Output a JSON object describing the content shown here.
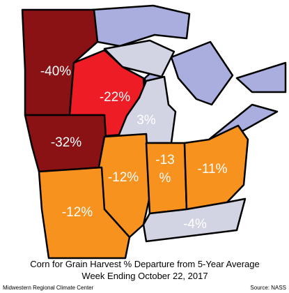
{
  "title": "Corn for Grain Harvest % Departure from 5-Year Average",
  "subtitle": "Week Ending October 22, 2017",
  "credit": "Midwestern Regional Climate Center",
  "source": "Source: NASS",
  "lake_color": "#a9aede",
  "regions": [
    {
      "label_lines": [
        "-40%"
      ],
      "color": "#8a1114"
    },
    {
      "label_lines": [
        "-22%"
      ],
      "color": "#ee1c24"
    },
    {
      "label_lines": [
        "3%"
      ],
      "color": "#d2d3e3"
    },
    {
      "label_lines": [
        "-32%"
      ],
      "color": "#8a1114"
    },
    {
      "label_lines": [
        "-12%"
      ],
      "color": "#f7921e"
    },
    {
      "label_lines": [
        "-13",
        "%"
      ],
      "color": "#f7921e"
    },
    {
      "label_lines": [
        "-11%"
      ],
      "color": "#f7921e"
    },
    {
      "label_lines": [
        "-12%"
      ],
      "color": "#f7921e"
    },
    {
      "label_lines": [
        "-4%"
      ],
      "color": "#d2d3e3"
    }
  ]
}
